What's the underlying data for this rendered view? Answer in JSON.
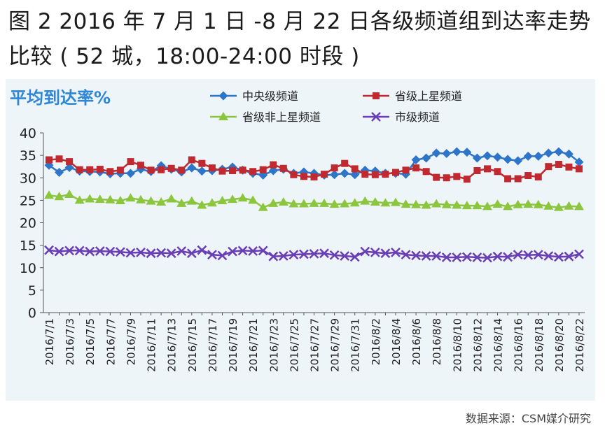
{
  "figure": {
    "title": "图 2  2016 年 7 月 1 日 -8 月 22 日各级频道组到达率走势比较 ( 52 城，18:00-24:00 时段 )",
    "source": "数据来源：CSM媒介研究"
  },
  "chart_data": {
    "type": "line",
    "title": "平均到达率%",
    "ylim": [
      0,
      40
    ],
    "yticks": [
      0,
      5,
      10,
      15,
      20,
      25,
      30,
      35,
      40
    ],
    "grid": false,
    "legend": "top",
    "x": [
      "2016/7/1",
      "2016/7/2",
      "2016/7/3",
      "2016/7/4",
      "2016/7/5",
      "2016/7/6",
      "2016/7/7",
      "2016/7/8",
      "2016/7/9",
      "2016/7/10",
      "2016/7/11",
      "2016/7/12",
      "2016/7/13",
      "2016/7/14",
      "2016/7/15",
      "2016/7/16",
      "2016/7/17",
      "2016/7/18",
      "2016/7/19",
      "2016/7/20",
      "2016/7/21",
      "2016/7/22",
      "2016/7/23",
      "2016/7/24",
      "2016/7/25",
      "2016/7/26",
      "2016/7/27",
      "2016/7/28",
      "2016/7/29",
      "2016/7/30",
      "2016/7/31",
      "2016/8/1",
      "2016/8/2",
      "2016/8/3",
      "2016/8/4",
      "2016/8/5",
      "2016/8/6",
      "2016/8/7",
      "2016/8/8",
      "2016/8/9",
      "2016/8/10",
      "2016/8/11",
      "2016/8/12",
      "2016/8/13",
      "2016/8/14",
      "2016/8/15",
      "2016/8/16",
      "2016/8/17",
      "2016/8/18",
      "2016/8/19",
      "2016/8/20",
      "2016/8/21",
      "2016/8/22"
    ],
    "xtick_labels": [
      "2016/7/1",
      "2016/7/3",
      "2016/7/5",
      "2016/7/7",
      "2016/7/9",
      "2016/7/11",
      "2016/7/13",
      "2016/7/15",
      "2016/7/17",
      "2016/7/19",
      "2016/7/21",
      "2016/7/23",
      "2016/7/25",
      "2016/7/27",
      "2016/7/29",
      "2016/7/31",
      "2016/8/2",
      "2016/8/4",
      "2016/8/6",
      "2016/8/8",
      "2016/8/10",
      "2016/8/12",
      "2016/8/14",
      "2016/8/16",
      "2016/8/18",
      "2016/8/20",
      "2016/8/22"
    ],
    "series": [
      {
        "name": "中央级频道",
        "color": "#2e75c9",
        "marker": "diamond",
        "values": [
          32.8,
          31.2,
          32.3,
          31.5,
          31.4,
          31.3,
          30.9,
          31.0,
          31.0,
          31.9,
          31.4,
          32.7,
          31.9,
          31.3,
          32.2,
          31.5,
          31.6,
          31.9,
          32.4,
          31.7,
          31.0,
          30.6,
          31.6,
          31.9,
          31.0,
          31.3,
          31.0,
          30.6,
          30.7,
          31.0,
          30.7,
          31.7,
          31.5,
          31.0,
          31.0,
          30.8,
          34.0,
          34.4,
          35.5,
          35.4,
          35.8,
          35.7,
          34.4,
          34.9,
          34.6,
          34.1,
          33.8,
          34.8,
          34.8,
          35.5,
          35.8,
          35.3,
          33.5
        ]
      },
      {
        "name": "省级上星频道",
        "color": "#c0292f",
        "marker": "square",
        "values": [
          34.0,
          34.2,
          33.6,
          31.8,
          31.8,
          31.9,
          31.4,
          31.7,
          33.6,
          32.8,
          31.7,
          31.8,
          32.1,
          31.7,
          34.0,
          33.2,
          32.2,
          31.5,
          31.6,
          31.7,
          31.4,
          31.8,
          32.9,
          32.1,
          30.7,
          30.3,
          30.2,
          30.8,
          32.2,
          33.2,
          32.0,
          30.8,
          30.7,
          30.8,
          31.2,
          31.7,
          32.2,
          31.4,
          30.1,
          30.0,
          30.3,
          29.7,
          31.6,
          32.0,
          31.4,
          29.8,
          29.8,
          30.5,
          30.2,
          32.5,
          33.0,
          32.4,
          32.0
        ]
      },
      {
        "name": "省级非上星频道",
        "color": "#8cc63f",
        "marker": "triangle",
        "values": [
          26.1,
          25.8,
          26.3,
          25.0,
          25.3,
          25.2,
          25.1,
          24.9,
          25.5,
          25.1,
          24.8,
          24.6,
          25.3,
          24.3,
          24.8,
          23.9,
          24.4,
          24.9,
          25.2,
          25.5,
          25.0,
          23.4,
          24.3,
          24.6,
          24.2,
          24.2,
          24.3,
          24.3,
          24.1,
          24.2,
          24.4,
          24.8,
          24.6,
          24.4,
          24.5,
          24.1,
          24.0,
          23.9,
          24.2,
          24.0,
          23.9,
          23.8,
          23.8,
          23.6,
          24.1,
          23.6,
          24.0,
          24.1,
          24.0,
          23.7,
          23.4,
          23.7,
          23.6
        ]
      },
      {
        "name": "市级频道",
        "color": "#6a3fb5",
        "marker": "x",
        "values": [
          13.9,
          13.6,
          13.8,
          13.8,
          13.6,
          13.7,
          13.6,
          13.5,
          13.3,
          13.4,
          13.2,
          13.3,
          13.2,
          13.7,
          13.2,
          13.9,
          12.9,
          12.7,
          13.6,
          13.8,
          13.7,
          13.8,
          12.5,
          12.6,
          12.9,
          13.0,
          13.1,
          13.2,
          12.8,
          12.6,
          12.4,
          13.6,
          13.4,
          13.2,
          13.4,
          12.9,
          12.7,
          12.6,
          12.6,
          12.3,
          12.3,
          12.4,
          12.3,
          12.2,
          12.5,
          12.4,
          12.9,
          12.8,
          12.9,
          12.6,
          12.4,
          12.5,
          13.0
        ]
      }
    ]
  }
}
